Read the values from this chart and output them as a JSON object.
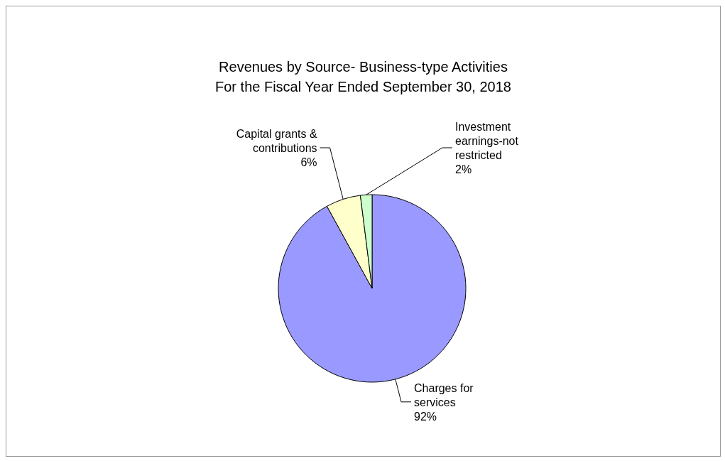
{
  "chart_data": {
    "type": "pie",
    "title": "Revenues by Source- Business-type Activities\nFor the Fiscal Year Ended September 30, 2018",
    "categories": [
      "Charges for services",
      "Capital grants & contributions",
      "Investment earnings-not restricted"
    ],
    "values": [
      92,
      6,
      2
    ],
    "value_labels": [
      "92%",
      "6%",
      "2%"
    ],
    "colors": [
      "#9999ff",
      "#ffffcc",
      "#ccffcc"
    ]
  }
}
